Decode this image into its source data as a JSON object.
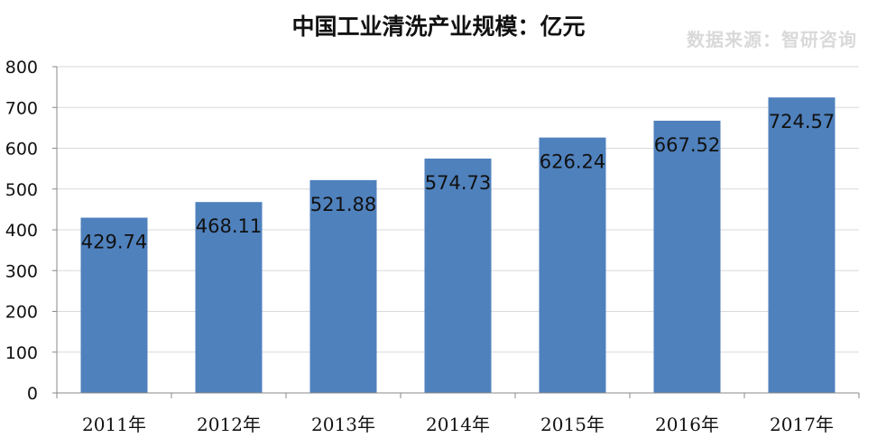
{
  "title": "中国工业清洗产业规模：亿元",
  "watermark": "数据来源：智研咨询",
  "colors": {
    "bar": "#4f81bd",
    "grid": "#d9d9d9",
    "axis": "#888888"
  },
  "chart_data": {
    "type": "bar",
    "title": "中国工业清洗产业规模：亿元",
    "categories": [
      "2011年",
      "2012年",
      "2013年",
      "2014年",
      "2015年",
      "2016年",
      "2017年"
    ],
    "values": [
      429.74,
      468.11,
      521.88,
      574.73,
      626.24,
      667.52,
      724.57
    ],
    "value_labels": [
      "429.74",
      "468.11",
      "521.88",
      "574.73",
      "626.24",
      "667.52",
      "724.57"
    ],
    "ylim": [
      0,
      800
    ],
    "yticks": [
      0,
      100,
      200,
      300,
      400,
      500,
      600,
      700,
      800
    ],
    "ytick_labels": [
      "0",
      "100",
      "200",
      "300",
      "400",
      "500",
      "600",
      "700",
      "800"
    ],
    "grid": true,
    "legend": "none",
    "xlabel": "",
    "ylabel": ""
  }
}
